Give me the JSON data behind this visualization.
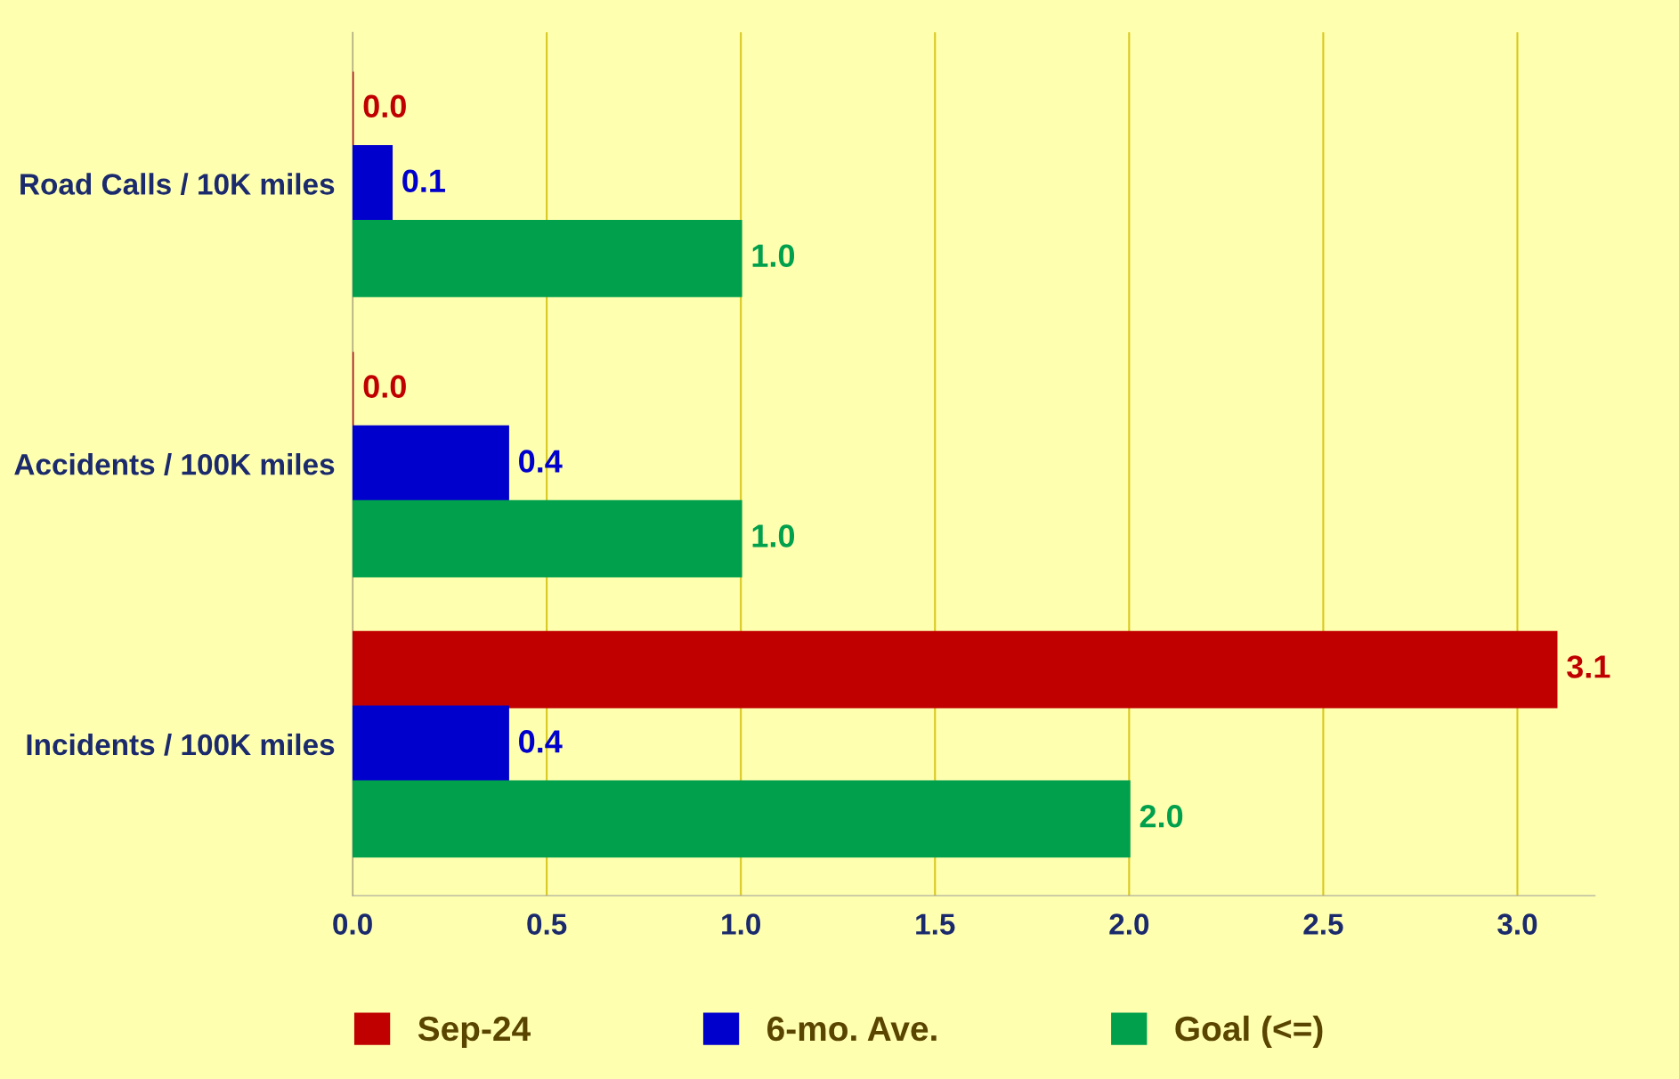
{
  "chart_data": {
    "type": "bar",
    "orientation": "horizontal",
    "categories": [
      "Road Calls / 10K miles",
      "Accidents / 100K miles",
      "Incidents / 100K miles"
    ],
    "series": [
      {
        "name": "Sep-24",
        "color": "#c00000",
        "values": [
          0.0,
          0.0,
          3.1
        ],
        "value_labels": [
          "0.0",
          "0.0",
          "3.1"
        ]
      },
      {
        "name": "6-mo. Ave.",
        "color": "#0000cc",
        "values": [
          0.1,
          0.4,
          0.4
        ],
        "value_labels": [
          "0.1",
          "0.4",
          "0.4"
        ]
      },
      {
        "name": "Goal (<=)",
        "color": "#00a04c",
        "values": [
          1.0,
          1.0,
          2.0
        ],
        "value_labels": [
          "1.0",
          "1.0",
          "2.0"
        ]
      }
    ],
    "xlim": [
      0,
      3.2
    ],
    "xticks": [
      {
        "value": 0,
        "label": "0.0"
      },
      {
        "value": 0.5,
        "label": "0.5"
      },
      {
        "value": 1,
        "label": "1.0"
      },
      {
        "value": 1.5,
        "label": "1.5"
      },
      {
        "value": 2,
        "label": "2.0"
      },
      {
        "value": 2.5,
        "label": "2.5"
      },
      {
        "value": 3,
        "label": "3.0"
      }
    ],
    "grid": "x",
    "legend": "bottom"
  }
}
